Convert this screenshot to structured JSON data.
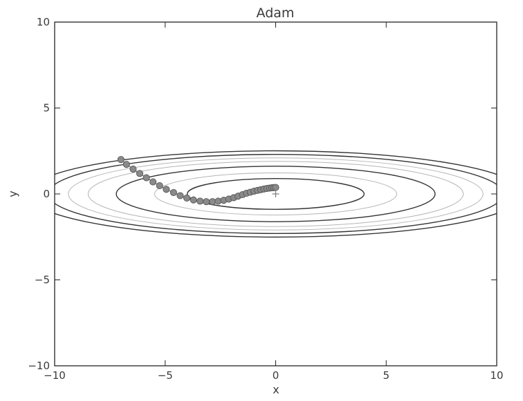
{
  "chart_data": {
    "type": "scatter",
    "title": "Adam",
    "xlabel": "x",
    "ylabel": "y",
    "xlim": [
      -10,
      10
    ],
    "ylim": [
      -10,
      10
    ],
    "xticks": [
      -10,
      -5,
      0,
      5,
      10
    ],
    "yticks": [
      -10,
      -5,
      0,
      5,
      10
    ],
    "x_tick_labels": [
      "−10",
      "−5",
      "0",
      "5",
      "10"
    ],
    "y_tick_labels": [
      "−10",
      "−5",
      "0",
      "5",
      "10"
    ],
    "grid": false,
    "contour_function": "f(x, y) = x^2 / 20 + y^2",
    "contour_levels": [
      0.8,
      1.5,
      2.6,
      3.6,
      4.4,
      5.3,
      6.3
    ],
    "minimum_marker": {
      "x": 0,
      "y": 0,
      "symbol": "+"
    },
    "colors": {
      "path_point_fill": "#8a8a8a",
      "path_point_edge": "#555555",
      "path_line": "#6a6a6a",
      "contour_dark": "#333333",
      "contour_light": "#b5b5b5"
    },
    "series": [
      {
        "x": [
          -7.0,
          -6.75,
          -6.45,
          -6.15,
          -5.85,
          -5.55,
          -5.25,
          -4.95,
          -4.62,
          -4.32,
          -4.02,
          -3.72,
          -3.42,
          -3.14,
          -2.86,
          -2.6,
          -2.35,
          -2.12,
          -1.9,
          -1.7,
          -1.5,
          -1.32,
          -1.15,
          -0.98,
          -0.82,
          -0.67,
          -0.53,
          -0.4,
          -0.28,
          -0.17,
          -0.08,
          0.0
        ],
        "y": [
          2.0,
          1.72,
          1.45,
          1.19,
          0.94,
          0.7,
          0.48,
          0.27,
          0.08,
          -0.1,
          -0.24,
          -0.35,
          -0.42,
          -0.45,
          -0.45,
          -0.42,
          -0.37,
          -0.3,
          -0.22,
          -0.13,
          -0.04,
          0.04,
          0.1,
          0.16,
          0.21,
          0.25,
          0.29,
          0.32,
          0.34,
          0.36,
          0.37,
          0.38
        ]
      }
    ]
  }
}
